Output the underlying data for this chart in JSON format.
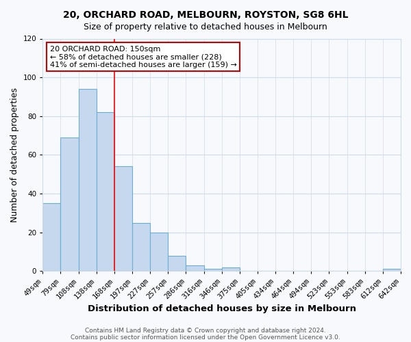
{
  "title": "20, ORCHARD ROAD, MELBOURN, ROYSTON, SG8 6HL",
  "subtitle": "Size of property relative to detached houses in Melbourn",
  "xlabel": "Distribution of detached houses by size in Melbourn",
  "ylabel": "Number of detached properties",
  "bar_values": [
    35,
    69,
    94,
    82,
    54,
    25,
    20,
    8,
    3,
    1,
    2,
    0,
    0,
    0,
    0,
    0,
    0,
    0,
    0,
    1
  ],
  "x_labels": [
    "49sqm",
    "79sqm",
    "108sqm",
    "138sqm",
    "168sqm",
    "197sqm",
    "227sqm",
    "257sqm",
    "286sqm",
    "316sqm",
    "346sqm",
    "375sqm",
    "405sqm",
    "434sqm",
    "464sqm",
    "494sqm",
    "523sqm",
    "553sqm",
    "583sqm",
    "612sqm",
    "642sqm"
  ],
  "bar_color": "#c5d8ed",
  "bar_edge_color": "#6aaed6",
  "bar_linewidth": 0.8,
  "ylim": [
    0,
    120
  ],
  "yticks": [
    0,
    20,
    40,
    60,
    80,
    100,
    120
  ],
  "red_line_x": 3.5,
  "annotation_title": "20 ORCHARD ROAD: 150sqm",
  "annotation_line1": "← 58% of detached houses are smaller (228)",
  "annotation_line2": "41% of semi-detached houses are larger (159) →",
  "annotation_box_facecolor": "#ffffff",
  "annotation_box_edgecolor": "#cc0000",
  "footer_line1": "Contains HM Land Registry data © Crown copyright and database right 2024.",
  "footer_line2": "Contains public sector information licensed under the Open Government Licence v3.0.",
  "fig_facecolor": "#f7f9fc",
  "plot_facecolor": "#f7f9fc",
  "grid_color": "#d0dce8",
  "title_fontsize": 10,
  "subtitle_fontsize": 9,
  "tick_fontsize": 7.5,
  "ylabel_fontsize": 9,
  "xlabel_fontsize": 9.5,
  "footer_fontsize": 6.5
}
